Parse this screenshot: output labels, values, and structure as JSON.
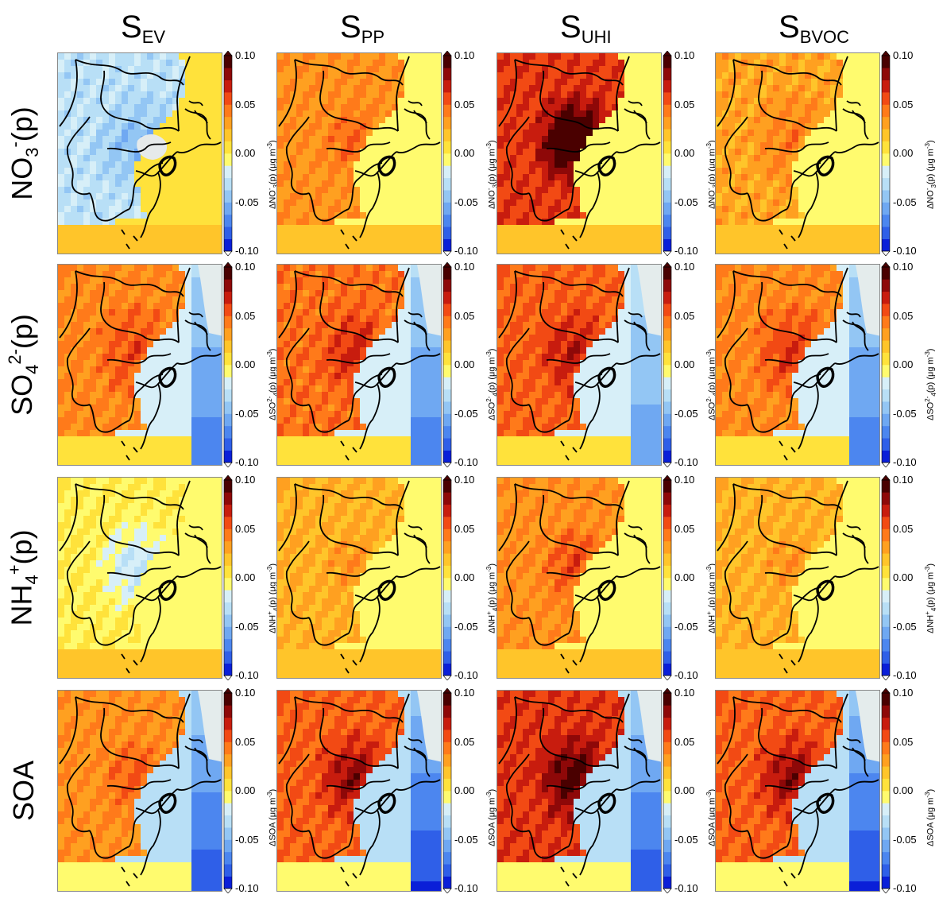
{
  "columns": [
    {
      "main": "S",
      "sub": "EV"
    },
    {
      "main": "S",
      "sub": "PP"
    },
    {
      "main": "S",
      "sub": "UHI"
    },
    {
      "main": "S",
      "sub": "BVOC"
    }
  ],
  "rows": [
    {
      "id": "no3",
      "base": "NO",
      "sub": "3",
      "sup": "-",
      "suffix": "(p)",
      "cb_prefix": "ΔNO",
      "cb_sub": "3",
      "cb_sup": "-",
      "cb_suffix": "(p)  (μg m",
      "cb_unit_sup": "-3",
      "cb_close": ")"
    },
    {
      "id": "so4",
      "base": "SO",
      "sub": "4",
      "sup": "2-",
      "suffix": "(p)",
      "cb_prefix": "ΔSO",
      "cb_sub": "4",
      "cb_sup": "2-",
      "cb_suffix": "(p)  (μg m",
      "cb_unit_sup": "-3",
      "cb_close": ")"
    },
    {
      "id": "nh4",
      "base": "NH",
      "sub": "4",
      "sup": "+",
      "suffix": "(p)",
      "cb_prefix": "ΔNH",
      "cb_sub": "4",
      "cb_sup": "+",
      "cb_suffix": "(p)  (μg m",
      "cb_unit_sup": "-3",
      "cb_close": ")"
    },
    {
      "id": "soa",
      "base": "SOA",
      "sub": "",
      "sup": "",
      "suffix": "",
      "cb_prefix": "ΔSOA",
      "cb_sub": "",
      "cb_sup": "",
      "cb_suffix": "  (μg m",
      "cb_unit_sup": "-3",
      "cb_close": ")"
    }
  ],
  "colorbar": {
    "ticks": [
      "0.10",
      "0.05",
      "0.00",
      "-0.05",
      "-0.10"
    ],
    "range": [
      -0.1,
      0.1
    ],
    "colors": [
      "#0a1fd8",
      "#2f5fe8",
      "#4c86ef",
      "#6fa8f2",
      "#93c6f4",
      "#b8dff6",
      "#d7eff8",
      "#fffb6e",
      "#ffe23b",
      "#ffc52a",
      "#ffa020",
      "#ff7a1a",
      "#f24a14",
      "#c81c0e",
      "#8e0808",
      "#4a0000"
    ]
  },
  "chart_data": [
    {
      "type": "heatmap",
      "column": "S_EV",
      "row": "NO3-(p)",
      "pattern": "mostly negative (blue) over land, near-zero offshore, grey masked near bay",
      "range": [
        -0.1,
        0.1
      ]
    },
    {
      "type": "heatmap",
      "column": "S_PP",
      "row": "NO3-(p)",
      "pattern": "positive (yellow-orange) over inland, up to ~0.05",
      "range": [
        -0.1,
        0.1
      ]
    },
    {
      "type": "heatmap",
      "column": "S_UHI",
      "row": "NO3-(p)",
      "pattern": "strong positive core exceeding 0.10 over central Kanto",
      "range": [
        -0.1,
        0.1
      ]
    },
    {
      "type": "heatmap",
      "column": "S_BVOC",
      "row": "NO3-(p)",
      "pattern": "weak positive (yellow-orange) inland",
      "range": [
        -0.1,
        0.1
      ]
    },
    {
      "type": "heatmap",
      "column": "S_EV",
      "row": "SO42-(p)",
      "pattern": "positive inland ~0.05, negative offshore east",
      "range": [
        -0.1,
        0.1
      ]
    },
    {
      "type": "heatmap",
      "column": "S_PP",
      "row": "SO42-(p)",
      "pattern": "positive inland ~0.05-0.07, negative offshore east",
      "range": [
        -0.1,
        0.1
      ]
    },
    {
      "type": "heatmap",
      "column": "S_UHI",
      "row": "SO42-(p)",
      "pattern": "positive inland up to ~0.07, negative offshore",
      "range": [
        -0.1,
        0.1
      ]
    },
    {
      "type": "heatmap",
      "column": "S_BVOC",
      "row": "SO42-(p)",
      "pattern": "positive inland ~0.05, negative offshore east",
      "range": [
        -0.1,
        0.1
      ]
    },
    {
      "type": "heatmap",
      "column": "S_EV",
      "row": "NH4+(p)",
      "pattern": "slightly negative (light blue) near bay, near zero elsewhere",
      "range": [
        -0.1,
        0.1
      ]
    },
    {
      "type": "heatmap",
      "column": "S_PP",
      "row": "NH4+(p)",
      "pattern": "weak positive inland ~0.02-0.04",
      "range": [
        -0.1,
        0.1
      ]
    },
    {
      "type": "heatmap",
      "column": "S_UHI",
      "row": "NH4+(p)",
      "pattern": "positive inland ~0.04-0.06",
      "range": [
        -0.1,
        0.1
      ]
    },
    {
      "type": "heatmap",
      "column": "S_BVOC",
      "row": "NH4+(p)",
      "pattern": "weak positive inland ~0.02-0.04",
      "range": [
        -0.1,
        0.1
      ]
    },
    {
      "type": "heatmap",
      "column": "S_EV",
      "row": "SOA",
      "pattern": "positive inland ~0.05, negative offshore east",
      "range": [
        -0.1,
        0.1
      ]
    },
    {
      "type": "heatmap",
      "column": "S_PP",
      "row": "SOA",
      "pattern": "positive inland up to ~0.08, negative offshore",
      "range": [
        -0.1,
        0.1
      ]
    },
    {
      "type": "heatmap",
      "column": "S_UHI",
      "row": "SOA",
      "pattern": "strong positive inland up to ~0.10, negative offshore",
      "range": [
        -0.1,
        0.1
      ]
    },
    {
      "type": "heatmap",
      "column": "S_BVOC",
      "row": "SOA",
      "pattern": "positive inland up to ~0.08, negative offshore",
      "range": [
        -0.1,
        0.1
      ]
    }
  ]
}
